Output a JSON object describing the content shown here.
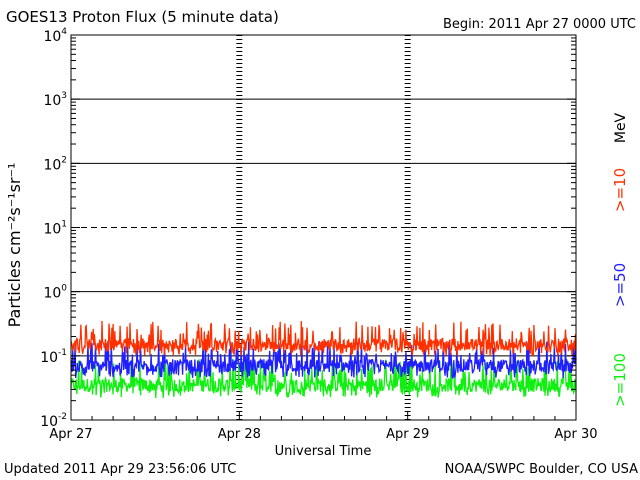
{
  "header": {
    "title": "GOES13 Proton Flux (5 minute data)",
    "begin": "Begin: 2011 Apr 27 0000 UTC"
  },
  "footer": {
    "updated": "Updated 2011 Apr 29 23:56:06 UTC",
    "credit": "NOAA/SWPC Boulder, CO USA"
  },
  "colors": {
    "ge10": "#ff3000",
    "ge50": "#2020ff",
    "ge100": "#10f010",
    "axis": "#000000"
  },
  "chart_data": {
    "type": "line",
    "xlabel": "Universal Time",
    "ylabel": "Particles cm⁻²s⁻¹sr⁻¹",
    "yscale": "log",
    "ylim": [
      0.01,
      10000
    ],
    "xlim": [
      0,
      3
    ],
    "x_ticks": [
      {
        "value": 0,
        "label": "Apr 27"
      },
      {
        "value": 1,
        "label": "Apr 28"
      },
      {
        "value": 2,
        "label": "Apr 29"
      },
      {
        "value": 3,
        "label": "Apr 30"
      }
    ],
    "y_ticks": [
      {
        "value": 0.01,
        "base": "10",
        "exp": "-2"
      },
      {
        "value": 0.1,
        "base": "10",
        "exp": "-1"
      },
      {
        "value": 1,
        "base": "10",
        "exp": "0"
      },
      {
        "value": 10,
        "base": "10",
        "exp": "1"
      },
      {
        "value": 100,
        "base": "10",
        "exp": "2"
      },
      {
        "value": 1000,
        "base": "10",
        "exp": "3"
      },
      {
        "value": 10000,
        "base": "10",
        "exp": "4"
      }
    ],
    "threshold_line": {
      "value": 10,
      "style": "dashed"
    },
    "unit_label": "MeV",
    "series": [
      {
        "name": ">=10",
        "color": "#ff3000",
        "baseline": 0.15,
        "min": 0.1,
        "max": 0.35
      },
      {
        "name": ">=50",
        "color": "#2020ff",
        "baseline": 0.07,
        "min": 0.045,
        "max": 0.17
      },
      {
        "name": ">=100",
        "color": "#10f010",
        "baseline": 0.035,
        "min": 0.022,
        "max": 0.09
      }
    ]
  }
}
